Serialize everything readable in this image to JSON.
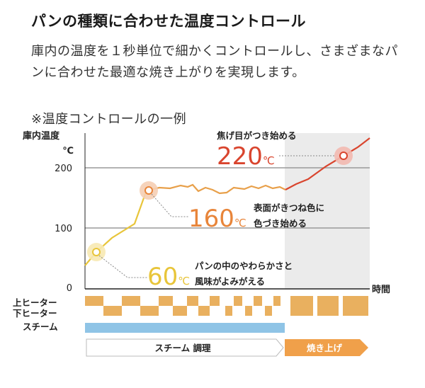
{
  "heading": "パンの種類に合わせた温度コントロール",
  "body": "庫内の温度を１秒単位で細かくコントロールし、さまざまなパンに合わせた最適な焼き上がりを実現します。",
  "note": "※温度コントロールの一例",
  "colors": {
    "steam_curve": "#e8c53a",
    "bake_curve": "#d9452e",
    "heater": "#e9b05f",
    "steam": "#8fc4e6",
    "orange": "#f0a04a",
    "bake_zone": "#ebebeb"
  },
  "chart_data": {
    "type": "line",
    "ylabel_line1": "庫内温度",
    "ylabel_line2": "℃",
    "xlabel": "時間",
    "yticks": [
      "0",
      "100",
      "200"
    ],
    "ylim": [
      0,
      250
    ],
    "temperature_curve": [
      [
        0,
        40
      ],
      [
        7,
        60
      ],
      [
        18,
        100
      ],
      [
        26,
        112
      ],
      [
        33,
        160
      ],
      [
        36,
        167
      ],
      [
        42,
        165
      ],
      [
        48,
        167
      ],
      [
        53,
        163
      ],
      [
        57,
        167
      ],
      [
        62,
        163
      ],
      [
        66,
        159
      ],
      [
        70,
        163
      ],
      [
        75,
        159
      ],
      [
        79,
        163
      ],
      [
        83,
        165
      ],
      [
        87,
        163
      ],
      [
        91,
        167
      ],
      [
        95,
        165
      ],
      [
        100,
        163
      ],
      [
        105,
        165
      ],
      [
        110,
        167
      ],
      [
        115,
        163
      ],
      [
        120,
        165
      ],
      [
        125,
        167
      ],
      [
        130,
        163
      ],
      [
        135,
        165
      ],
      [
        140,
        167
      ],
      [
        145,
        163
      ],
      [
        150,
        167
      ],
      [
        155,
        160
      ],
      [
        160,
        163
      ],
      [
        165,
        167
      ],
      [
        170,
        165
      ],
      [
        175,
        163
      ],
      [
        180,
        165
      ],
      [
        185,
        167
      ],
      [
        190,
        163
      ],
      [
        195,
        165
      ],
      [
        200,
        167
      ],
      [
        205,
        163
      ],
      [
        210,
        165
      ],
      [
        215,
        175
      ],
      [
        225,
        195
      ],
      [
        240,
        220
      ],
      [
        255,
        250
      ]
    ],
    "annotations": [
      {
        "id": "a60",
        "value_text": "60",
        "unit": "℃",
        "desc_line1": "パンの中のやわらかさと",
        "desc_line2": "風味がよみがえる"
      },
      {
        "id": "a160",
        "value_text": "160",
        "unit": "℃",
        "desc_line1": "表面がきつね色に",
        "desc_line2": "色づき始める"
      },
      {
        "id": "a220",
        "value_text": "220",
        "unit": "℃",
        "desc_line1": "焦げ目がつき始める"
      }
    ],
    "rows": {
      "upper_heater": "上ヒーター",
      "lower_heater": "下ヒーター",
      "steam": "スチーム"
    },
    "phases": {
      "steam_cooking": "スチーム 調理",
      "baking": "焼き上げ"
    }
  }
}
